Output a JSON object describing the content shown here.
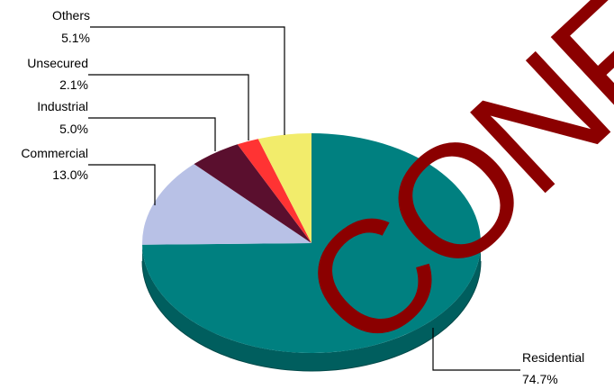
{
  "chart_data": {
    "type": "pie",
    "title": "",
    "three_d": true,
    "start": "top, clockwise",
    "slices": [
      {
        "label": "Residential",
        "value_text": "74.7%",
        "value": 74.7,
        "color": "#008080"
      },
      {
        "label": "Commercial",
        "value_text": "13.0%",
        "value": 13.0,
        "color": "#B8C1E6"
      },
      {
        "label": "Industrial",
        "value_text": "5.0%",
        "value": 5.0,
        "color": "#5A0F2E"
      },
      {
        "label": "Unsecured",
        "value_text": "2.1%",
        "value": 2.1,
        "color": "#FF3333"
      },
      {
        "label": "Others",
        "value_text": "5.1%",
        "value": 5.1,
        "color": "#F2EC6B"
      }
    ],
    "side_color": "#005E5E"
  },
  "watermark": {
    "text": "CONF",
    "color": "#8B0000"
  }
}
